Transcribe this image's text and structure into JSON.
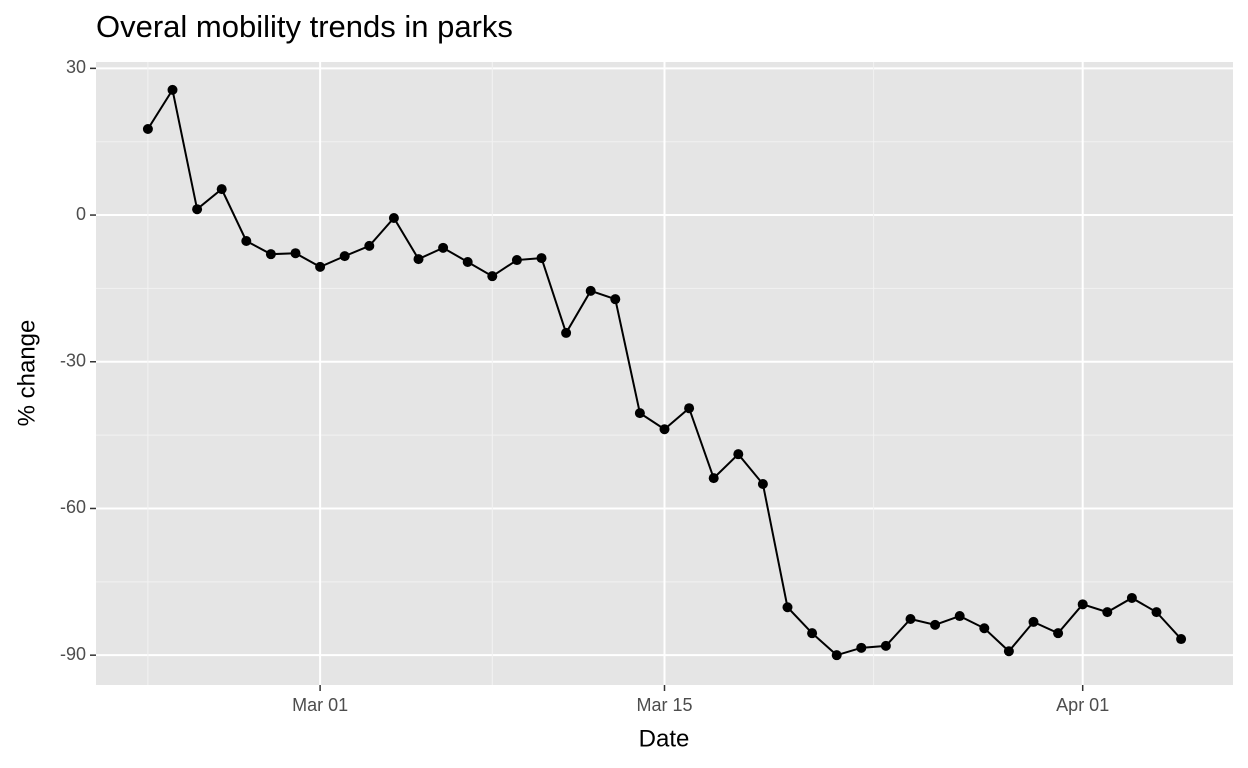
{
  "chart_data": {
    "type": "line",
    "title": "Overal mobility trends in parks",
    "x_label": "Date",
    "y_label": "% change",
    "x": [
      "Feb 23",
      "Feb 24",
      "Feb 25",
      "Feb 26",
      "Feb 27",
      "Feb 28",
      "Feb 29",
      "Mar 01",
      "Mar 02",
      "Mar 03",
      "Mar 04",
      "Mar 05",
      "Mar 06",
      "Mar 07",
      "Mar 08",
      "Mar 09",
      "Mar 10",
      "Mar 11",
      "Mar 12",
      "Mar 13",
      "Mar 14",
      "Mar 15",
      "Mar 16",
      "Mar 17",
      "Mar 18",
      "Mar 19",
      "Mar 20",
      "Mar 21",
      "Mar 22",
      "Mar 23",
      "Mar 24",
      "Mar 25",
      "Mar 26",
      "Mar 27",
      "Mar 28",
      "Mar 29",
      "Mar 30",
      "Mar 31",
      "Apr 01",
      "Apr 02",
      "Apr 03",
      "Apr 04",
      "Apr 05"
    ],
    "series": [
      {
        "color": "#000000",
        "values": [
          17.6,
          25.6,
          1.2,
          5.3,
          -5.3,
          -8,
          -7.8,
          -10.6,
          -8.4,
          -6.3,
          -0.6,
          -9,
          -6.7,
          -9.6,
          -12.5,
          -9.2,
          -8.8,
          -24.1,
          -15.5,
          -17.2,
          -40.5,
          -43.8,
          -39.5,
          -53.8,
          -48.9,
          -55,
          -80.2,
          -85.5,
          -90,
          -88.5,
          -88.1,
          -82.6,
          -83.8,
          -82,
          -84.5,
          -89.2,
          -83.2,
          -85.5,
          -79.6,
          -81.2,
          -78.3,
          -81.2,
          -86.7
        ]
      }
    ],
    "xticks": [
      "Mar 01",
      "Mar 15",
      "Apr 01"
    ],
    "ylim": [
      -96.1,
      31.3
    ],
    "yticks": [
      -90,
      -60,
      -30,
      0,
      30
    ],
    "grid": true
  }
}
